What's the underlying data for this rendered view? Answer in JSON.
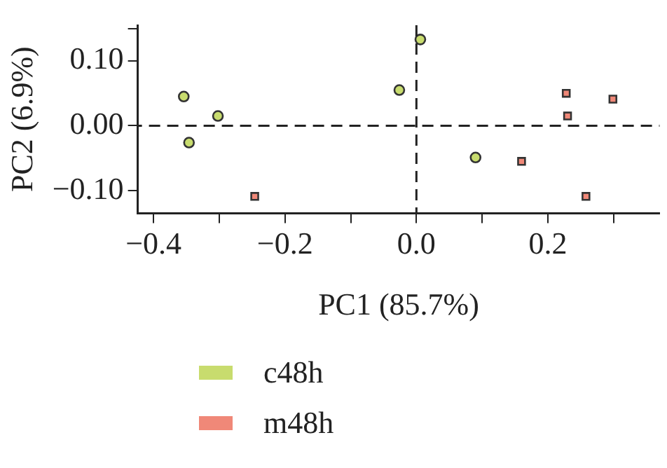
{
  "chart_data": {
    "type": "scatter",
    "xlabel": "PC1 (85.7%)",
    "ylabel": "PC2 (6.9%)",
    "xlim": [
      -0.424,
      0.37
    ],
    "ylim": [
      -0.135,
      0.155
    ],
    "xticks": [
      {
        "value": -0.4,
        "label": "−0.4"
      },
      {
        "value": -0.3,
        "label": null
      },
      {
        "value": -0.2,
        "label": "−0.2"
      },
      {
        "value": -0.1,
        "label": null
      },
      {
        "value": 0,
        "label": "0.0"
      },
      {
        "value": 0.1,
        "label": null
      },
      {
        "value": 0.2,
        "label": "0.2"
      },
      {
        "value": 0.3,
        "label": null
      }
    ],
    "yticks": [
      {
        "value": -0.1,
        "label": "−0.10"
      },
      {
        "value": 0,
        "label": "0.00"
      },
      {
        "value": 0.1,
        "label": "0.10"
      },
      {
        "value": 0.15,
        "label": null
      }
    ],
    "grid": false,
    "legend": "bottom",
    "ref_lines": [
      {
        "axis": "x",
        "value": 0,
        "line_style": "dashed",
        "color": "#222222"
      },
      {
        "axis": "y",
        "value": 0,
        "line_style": "dashed",
        "color": "#222222"
      }
    ],
    "series": [
      {
        "name": "c48h",
        "color": "#c8dc6e",
        "marker": "circle",
        "x": [
          -0.354,
          -0.346,
          -0.302,
          -0.026,
          0.006,
          0.09
        ],
        "values": [
          0.045,
          -0.026,
          0.015,
          0.055,
          0.133,
          -0.049
        ]
      },
      {
        "name": "m48h",
        "color": "#f08878",
        "marker": "square",
        "x": [
          -0.246,
          0.16,
          0.228,
          0.23,
          0.258,
          0.299
        ],
        "values": [
          -0.109,
          -0.055,
          0.05,
          0.015,
          -0.109,
          0.041
        ]
      }
    ]
  }
}
